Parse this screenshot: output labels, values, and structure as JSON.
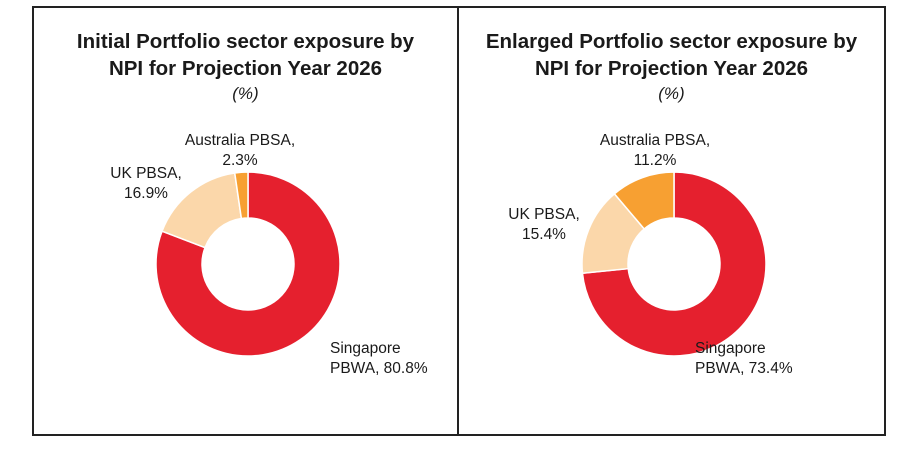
{
  "chart_data": [
    {
      "type": "pie",
      "title_line1": "Initial Portfolio sector exposure by",
      "title_line2": "NPI for Projection Year 2026",
      "unit": "(%)",
      "slices": [
        {
          "label_line1": "Singapore",
          "label_line2": "PBWA, 80.8%",
          "value": 80.8,
          "color": "#e5202e"
        },
        {
          "label_line1": "UK PBSA,",
          "label_line2": "16.9%",
          "value": 16.9,
          "color": "#fbd7aa"
        },
        {
          "label_line1": "Australia PBSA,",
          "label_line2": "2.3%",
          "value": 2.3,
          "color": "#f7a032"
        }
      ]
    },
    {
      "type": "pie",
      "title_line1": "Enlarged Portfolio sector exposure by",
      "title_line2": "NPI for Projection Year 2026",
      "unit": "(%)",
      "slices": [
        {
          "label_line1": "Singapore",
          "label_line2": "PBWA, 73.4%",
          "value": 73.4,
          "color": "#e5202e"
        },
        {
          "label_line1": "UK PBSA,",
          "label_line2": "15.4%",
          "value": 15.4,
          "color": "#fbd7aa"
        },
        {
          "label_line1": "Australia PBSA,",
          "label_line2": "11.2%",
          "value": 11.2,
          "color": "#f7a032"
        }
      ]
    }
  ]
}
